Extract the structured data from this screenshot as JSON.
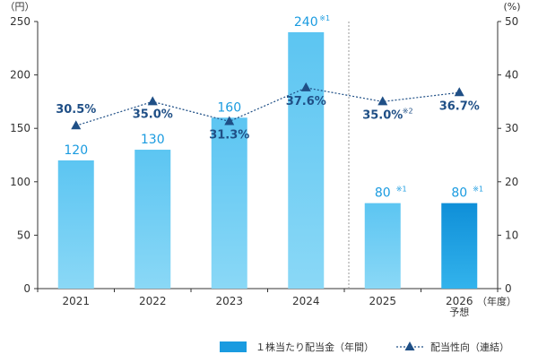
{
  "chart_data": {
    "type": "bar",
    "categories": [
      "2021",
      "2022",
      "2023",
      "2024",
      "2025",
      "2026"
    ],
    "category_sub_labels": [
      "",
      "",
      "",
      "",
      "",
      "予想"
    ],
    "x_unit": "（年度）",
    "y_left_unit": "（円）",
    "y_right_unit": "(%)",
    "ylim_left": [
      0,
      250
    ],
    "ylim_right": [
      0,
      50
    ],
    "yticks_left": [
      0,
      50,
      100,
      150,
      200,
      250
    ],
    "yticks_right": [
      0,
      10,
      20,
      30,
      40,
      50
    ],
    "series": [
      {
        "name": "１株当たり配当金（年間）",
        "type": "bar",
        "axis": "left",
        "values": [
          120,
          130,
          160,
          240,
          80,
          80
        ],
        "labels": [
          "120",
          "130",
          "160",
          "240",
          "80",
          "80"
        ],
        "notes": [
          "",
          "",
          "",
          "※1",
          "※1",
          "※1"
        ],
        "color": "#6ccdf4",
        "forecast_color": "#1a9be0"
      },
      {
        "name": "配当性向（連結）",
        "type": "line",
        "axis": "right",
        "values": [
          30.5,
          35.0,
          31.3,
          37.6,
          35.0,
          36.7
        ],
        "labels": [
          "30.5%",
          "35.0%",
          "31.3%",
          "37.6%",
          "35.0%",
          "36.7%"
        ],
        "notes": [
          "",
          "",
          "",
          "",
          "※2",
          ""
        ],
        "color": "#1f4f86"
      }
    ],
    "forecast_divider_after": "2024",
    "legend_position": "bottom-right",
    "grid": false
  }
}
